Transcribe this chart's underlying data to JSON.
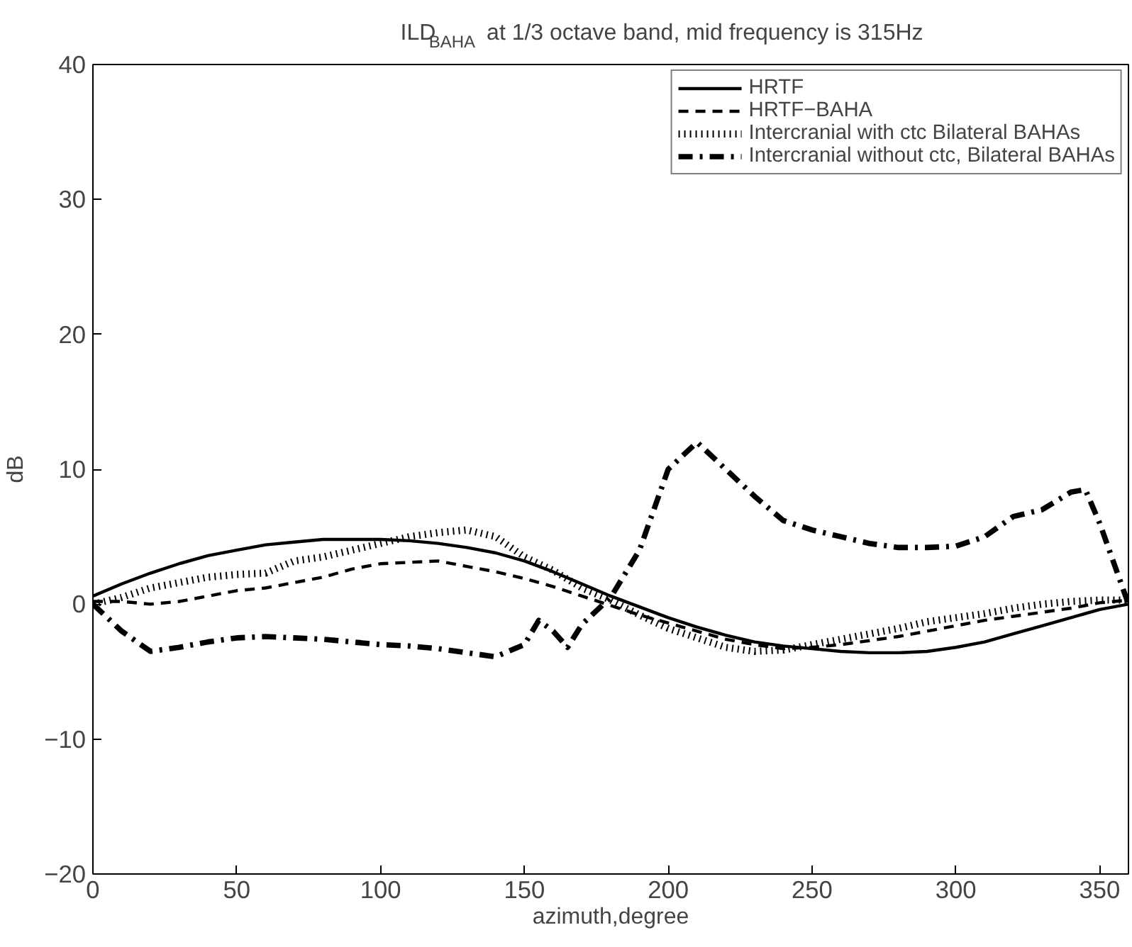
{
  "chart_data": {
    "type": "line",
    "title": "ILD$_{BAHA}$ at 1/3 octave band, mid frequency is 315Hz",
    "xlabel": "azimuth,degree",
    "ylabel": "dB",
    "xlim": [
      0,
      360
    ],
    "ylim": [
      -20,
      40
    ],
    "xticks": [
      0,
      50,
      100,
      150,
      200,
      250,
      300,
      350
    ],
    "yticks": [
      -20,
      -10,
      0,
      10,
      20,
      30,
      40
    ],
    "grid": false,
    "legend": "top right",
    "marker": "none",
    "x": [
      0,
      10,
      20,
      30,
      40,
      50,
      60,
      70,
      80,
      90,
      100,
      110,
      120,
      130,
      140,
      150,
      160,
      170,
      180,
      190,
      200,
      210,
      220,
      230,
      240,
      250,
      260,
      270,
      280,
      290,
      300,
      310,
      320,
      330,
      340,
      350,
      360
    ],
    "series": [
      {
        "name": "HRTF",
        "color": "#000000",
        "line_style": "solid",
        "values": [
          0.6,
          1.5,
          2.3,
          3.0,
          3.6,
          4.0,
          4.4,
          4.6,
          4.8,
          4.8,
          4.8,
          4.7,
          4.5,
          4.2,
          3.8,
          3.2,
          2.4,
          1.5,
          0.6,
          -0.2,
          -1.0,
          -1.7,
          -2.3,
          -2.8,
          -3.1,
          -3.3,
          -3.5,
          -3.6,
          -3.6,
          -3.5,
          -3.2,
          -2.8,
          -2.2,
          -1.6,
          -1.0,
          -0.4,
          0
        ]
      },
      {
        "name": "HRTF−BAHA",
        "color": "#000000",
        "line_style": "dashed",
        "values": [
          0.2,
          0.2,
          0,
          0.2,
          0.6,
          1.0,
          1.2,
          1.6,
          2.0,
          2.6,
          3.0,
          3.1,
          3.2,
          2.8,
          2.4,
          1.9,
          1.3,
          0.6,
          -0.1,
          -0.8,
          -1.4,
          -2.0,
          -2.6,
          -3.0,
          -3.3,
          -3.2,
          -3.0,
          -2.7,
          -2.4,
          -2.0,
          -1.6,
          -1.2,
          -0.9,
          -0.6,
          -0.3,
          0.1,
          0.3
        ]
      },
      {
        "name": "Intercranial with ctc Bilateral BAHAs",
        "color": "#000000",
        "line_style": "dotted",
        "values": [
          0,
          0.5,
          1.2,
          1.6,
          2.0,
          2.2,
          2.3,
          3.2,
          3.5,
          4.0,
          4.5,
          5.0,
          5.3,
          5.5,
          5.0,
          3.5,
          2.5,
          1.2,
          0.3,
          -0.8,
          -1.8,
          -2.5,
          -3.2,
          -3.5,
          -3.4,
          -3.0,
          -2.6,
          -2.2,
          -1.8,
          -1.3,
          -1.0,
          -0.7,
          -0.3,
          0,
          0.2,
          0.3,
          0.3
        ]
      },
      {
        "name": "Intercranial without ctc, Bilateral BAHAs",
        "color": "#000000",
        "line_style": "dashdot",
        "x": [
          0,
          10,
          20,
          30,
          40,
          50,
          60,
          70,
          80,
          90,
          100,
          110,
          120,
          130,
          140,
          150,
          155,
          160,
          165,
          170,
          180,
          190,
          200,
          210,
          220,
          230,
          240,
          250,
          260,
          270,
          280,
          290,
          300,
          310,
          320,
          330,
          340,
          345,
          350,
          355,
          360
        ],
        "values": [
          0,
          -2.0,
          -3.5,
          -3.2,
          -2.8,
          -2.5,
          -2.4,
          -2.5,
          -2.6,
          -2.8,
          -3.0,
          -3.1,
          -3.3,
          -3.6,
          -3.9,
          -3.0,
          -1.2,
          -2.0,
          -3.2,
          -1.5,
          0.5,
          4.0,
          10.0,
          12.0,
          10.0,
          8.0,
          6.2,
          5.5,
          5.0,
          4.5,
          4.2,
          4.2,
          4.3,
          5.0,
          6.5,
          7.0,
          8.3,
          8.5,
          6.0,
          3.0,
          0
        ]
      }
    ]
  }
}
